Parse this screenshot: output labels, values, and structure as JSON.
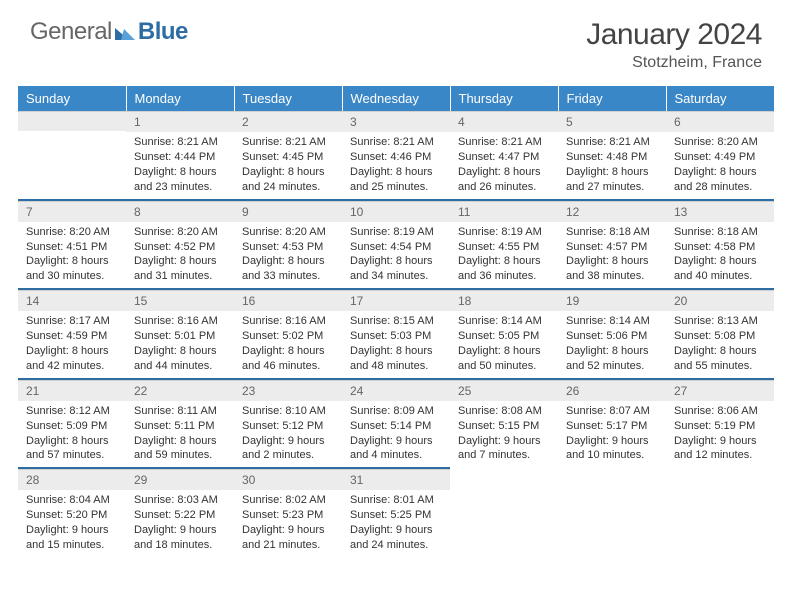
{
  "logo": {
    "general": "General",
    "blue": "Blue"
  },
  "title": "January 2024",
  "location": "Stotzheim, France",
  "colors": {
    "header_bg": "#3a87c7",
    "header_text": "#ffffff",
    "rule": "#2e6da4",
    "daynum_bg": "#ececec",
    "body_text": "#333333",
    "logo_gray": "#666666",
    "logo_blue": "#2e6da4"
  },
  "day_headers": [
    "Sunday",
    "Monday",
    "Tuesday",
    "Wednesday",
    "Thursday",
    "Friday",
    "Saturday"
  ],
  "cells": [
    [
      {
        "num": "",
        "lines": []
      },
      {
        "num": "1",
        "lines": [
          "Sunrise: 8:21 AM",
          "Sunset: 4:44 PM",
          "Daylight: 8 hours",
          "and 23 minutes."
        ]
      },
      {
        "num": "2",
        "lines": [
          "Sunrise: 8:21 AM",
          "Sunset: 4:45 PM",
          "Daylight: 8 hours",
          "and 24 minutes."
        ]
      },
      {
        "num": "3",
        "lines": [
          "Sunrise: 8:21 AM",
          "Sunset: 4:46 PM",
          "Daylight: 8 hours",
          "and 25 minutes."
        ]
      },
      {
        "num": "4",
        "lines": [
          "Sunrise: 8:21 AM",
          "Sunset: 4:47 PM",
          "Daylight: 8 hours",
          "and 26 minutes."
        ]
      },
      {
        "num": "5",
        "lines": [
          "Sunrise: 8:21 AM",
          "Sunset: 4:48 PM",
          "Daylight: 8 hours",
          "and 27 minutes."
        ]
      },
      {
        "num": "6",
        "lines": [
          "Sunrise: 8:20 AM",
          "Sunset: 4:49 PM",
          "Daylight: 8 hours",
          "and 28 minutes."
        ]
      }
    ],
    [
      {
        "num": "7",
        "lines": [
          "Sunrise: 8:20 AM",
          "Sunset: 4:51 PM",
          "Daylight: 8 hours",
          "and 30 minutes."
        ]
      },
      {
        "num": "8",
        "lines": [
          "Sunrise: 8:20 AM",
          "Sunset: 4:52 PM",
          "Daylight: 8 hours",
          "and 31 minutes."
        ]
      },
      {
        "num": "9",
        "lines": [
          "Sunrise: 8:20 AM",
          "Sunset: 4:53 PM",
          "Daylight: 8 hours",
          "and 33 minutes."
        ]
      },
      {
        "num": "10",
        "lines": [
          "Sunrise: 8:19 AM",
          "Sunset: 4:54 PM",
          "Daylight: 8 hours",
          "and 34 minutes."
        ]
      },
      {
        "num": "11",
        "lines": [
          "Sunrise: 8:19 AM",
          "Sunset: 4:55 PM",
          "Daylight: 8 hours",
          "and 36 minutes."
        ]
      },
      {
        "num": "12",
        "lines": [
          "Sunrise: 8:18 AM",
          "Sunset: 4:57 PM",
          "Daylight: 8 hours",
          "and 38 minutes."
        ]
      },
      {
        "num": "13",
        "lines": [
          "Sunrise: 8:18 AM",
          "Sunset: 4:58 PM",
          "Daylight: 8 hours",
          "and 40 minutes."
        ]
      }
    ],
    [
      {
        "num": "14",
        "lines": [
          "Sunrise: 8:17 AM",
          "Sunset: 4:59 PM",
          "Daylight: 8 hours",
          "and 42 minutes."
        ]
      },
      {
        "num": "15",
        "lines": [
          "Sunrise: 8:16 AM",
          "Sunset: 5:01 PM",
          "Daylight: 8 hours",
          "and 44 minutes."
        ]
      },
      {
        "num": "16",
        "lines": [
          "Sunrise: 8:16 AM",
          "Sunset: 5:02 PM",
          "Daylight: 8 hours",
          "and 46 minutes."
        ]
      },
      {
        "num": "17",
        "lines": [
          "Sunrise: 8:15 AM",
          "Sunset: 5:03 PM",
          "Daylight: 8 hours",
          "and 48 minutes."
        ]
      },
      {
        "num": "18",
        "lines": [
          "Sunrise: 8:14 AM",
          "Sunset: 5:05 PM",
          "Daylight: 8 hours",
          "and 50 minutes."
        ]
      },
      {
        "num": "19",
        "lines": [
          "Sunrise: 8:14 AM",
          "Sunset: 5:06 PM",
          "Daylight: 8 hours",
          "and 52 minutes."
        ]
      },
      {
        "num": "20",
        "lines": [
          "Sunrise: 8:13 AM",
          "Sunset: 5:08 PM",
          "Daylight: 8 hours",
          "and 55 minutes."
        ]
      }
    ],
    [
      {
        "num": "21",
        "lines": [
          "Sunrise: 8:12 AM",
          "Sunset: 5:09 PM",
          "Daylight: 8 hours",
          "and 57 minutes."
        ]
      },
      {
        "num": "22",
        "lines": [
          "Sunrise: 8:11 AM",
          "Sunset: 5:11 PM",
          "Daylight: 8 hours",
          "and 59 minutes."
        ]
      },
      {
        "num": "23",
        "lines": [
          "Sunrise: 8:10 AM",
          "Sunset: 5:12 PM",
          "Daylight: 9 hours",
          "and 2 minutes."
        ]
      },
      {
        "num": "24",
        "lines": [
          "Sunrise: 8:09 AM",
          "Sunset: 5:14 PM",
          "Daylight: 9 hours",
          "and 4 minutes."
        ]
      },
      {
        "num": "25",
        "lines": [
          "Sunrise: 8:08 AM",
          "Sunset: 5:15 PM",
          "Daylight: 9 hours",
          "and 7 minutes."
        ]
      },
      {
        "num": "26",
        "lines": [
          "Sunrise: 8:07 AM",
          "Sunset: 5:17 PM",
          "Daylight: 9 hours",
          "and 10 minutes."
        ]
      },
      {
        "num": "27",
        "lines": [
          "Sunrise: 8:06 AM",
          "Sunset: 5:19 PM",
          "Daylight: 9 hours",
          "and 12 minutes."
        ]
      }
    ],
    [
      {
        "num": "28",
        "lines": [
          "Sunrise: 8:04 AM",
          "Sunset: 5:20 PM",
          "Daylight: 9 hours",
          "and 15 minutes."
        ]
      },
      {
        "num": "29",
        "lines": [
          "Sunrise: 8:03 AM",
          "Sunset: 5:22 PM",
          "Daylight: 9 hours",
          "and 18 minutes."
        ]
      },
      {
        "num": "30",
        "lines": [
          "Sunrise: 8:02 AM",
          "Sunset: 5:23 PM",
          "Daylight: 9 hours",
          "and 21 minutes."
        ]
      },
      {
        "num": "31",
        "lines": [
          "Sunrise: 8:01 AM",
          "Sunset: 5:25 PM",
          "Daylight: 9 hours",
          "and 24 minutes."
        ]
      },
      {
        "num": "",
        "lines": []
      },
      {
        "num": "",
        "lines": []
      },
      {
        "num": "",
        "lines": []
      }
    ]
  ]
}
